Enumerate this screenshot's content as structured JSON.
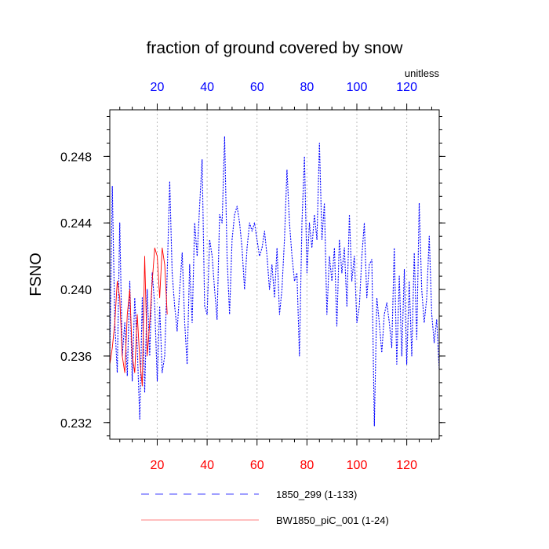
{
  "chart_data": {
    "type": "line",
    "title": "fraction of ground covered by snow",
    "ylabel": "FSNO",
    "units_label": "unitless",
    "xlim": [
      1,
      133
    ],
    "ylim": [
      0.231,
      0.2508
    ],
    "yticks": [
      0.232,
      0.236,
      0.24,
      0.244,
      0.248
    ],
    "ytick_labels": [
      "0.232",
      "0.236",
      "0.240",
      "0.244",
      "0.248"
    ],
    "xticks": [
      20,
      40,
      60,
      80,
      100,
      120
    ],
    "xtick_labels": [
      "20",
      "40",
      "60",
      "80",
      "100",
      "120"
    ],
    "grid": "vertical dotted at major x ticks",
    "legend_position": "bottom",
    "series": [
      {
        "name": "1850_299 (1-133)",
        "color": "#0000ff",
        "style": "dashed",
        "x": [
          1,
          2,
          3,
          4,
          5,
          6,
          7,
          8,
          9,
          10,
          11,
          12,
          13,
          14,
          15,
          16,
          17,
          18,
          19,
          20,
          21,
          22,
          23,
          24,
          25,
          26,
          27,
          28,
          29,
          30,
          31,
          32,
          33,
          34,
          35,
          36,
          37,
          38,
          39,
          40,
          41,
          42,
          43,
          44,
          45,
          46,
          47,
          48,
          49,
          50,
          51,
          52,
          53,
          54,
          55,
          56,
          57,
          58,
          59,
          60,
          61,
          62,
          63,
          64,
          65,
          66,
          67,
          68,
          69,
          70,
          71,
          72,
          73,
          74,
          75,
          76,
          77,
          78,
          79,
          80,
          81,
          82,
          83,
          84,
          85,
          86,
          87,
          88,
          89,
          90,
          91,
          92,
          93,
          94,
          95,
          96,
          97,
          98,
          99,
          100,
          101,
          102,
          103,
          104,
          105,
          106,
          107,
          108,
          109,
          110,
          111,
          112,
          113,
          114,
          115,
          116,
          117,
          118,
          119,
          120,
          121,
          122,
          123,
          124,
          125,
          126,
          127,
          128,
          129,
          130,
          131,
          132,
          133
        ],
        "values": [
          0.2358,
          0.2462,
          0.238,
          0.235,
          0.244,
          0.236,
          0.238,
          0.2348,
          0.2405,
          0.2345,
          0.2395,
          0.2365,
          0.2322,
          0.2395,
          0.2338,
          0.24,
          0.236,
          0.241,
          0.239,
          0.2345,
          0.239,
          0.235,
          0.236,
          0.241,
          0.2465,
          0.241,
          0.239,
          0.2375,
          0.24,
          0.2422,
          0.238,
          0.2355,
          0.2415,
          0.238,
          0.244,
          0.242,
          0.245,
          0.2478,
          0.239,
          0.2385,
          0.243,
          0.242,
          0.24,
          0.2382,
          0.2445,
          0.244,
          0.2492,
          0.242,
          0.2385,
          0.243,
          0.2445,
          0.245,
          0.244,
          0.2425,
          0.24,
          0.2425,
          0.244,
          0.2435,
          0.244,
          0.243,
          0.242,
          0.2425,
          0.2435,
          0.242,
          0.24,
          0.2415,
          0.2395,
          0.2425,
          0.2385,
          0.24,
          0.243,
          0.2472,
          0.244,
          0.242,
          0.2405,
          0.241,
          0.236,
          0.244,
          0.248,
          0.241,
          0.244,
          0.2425,
          0.2445,
          0.243,
          0.2488,
          0.243,
          0.2452,
          0.2385,
          0.242,
          0.2405,
          0.2425,
          0.2378,
          0.243,
          0.241,
          0.2425,
          0.239,
          0.2445,
          0.2405,
          0.242,
          0.238,
          0.239,
          0.242,
          0.244,
          0.2395,
          0.2415,
          0.2418,
          0.2318,
          0.2395,
          0.238,
          0.2362,
          0.2385,
          0.2392,
          0.238,
          0.2365,
          0.2425,
          0.2355,
          0.2408,
          0.236,
          0.2412,
          0.2355,
          0.2405,
          0.236,
          0.2422,
          0.237,
          0.2452,
          0.24,
          0.238,
          0.2395,
          0.2432,
          0.2385,
          0.2368,
          0.2382,
          0.2352
        ]
      },
      {
        "name": "BW1850_piC_001 (1-24)",
        "color": "#ff0000",
        "style": "solid",
        "x": [
          1,
          2,
          3,
          4,
          5,
          6,
          7,
          8,
          9,
          10,
          11,
          12,
          13,
          14,
          15,
          16,
          17,
          18,
          19,
          20,
          21,
          22,
          23,
          24
        ],
        "values": [
          0.2355,
          0.2365,
          0.238,
          0.2405,
          0.2395,
          0.236,
          0.235,
          0.2385,
          0.24,
          0.236,
          0.235,
          0.2385,
          0.2358,
          0.2342,
          0.242,
          0.236,
          0.238,
          0.2405,
          0.2425,
          0.242,
          0.2395,
          0.2425,
          0.2415,
          0.2385
        ]
      }
    ]
  }
}
